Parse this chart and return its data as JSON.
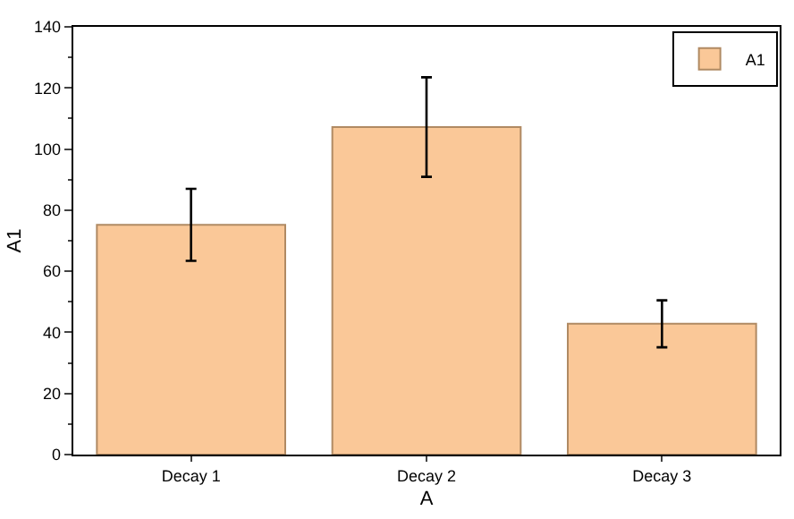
{
  "chart_data": {
    "type": "bar",
    "xlabel": "A",
    "ylabel": "A1",
    "categories": [
      "Decay 1",
      "Decay 2",
      "Decay 3"
    ],
    "series": [
      {
        "name": "A1",
        "color": "#fac898",
        "values": [
          75.2,
          107.2,
          42.8
        ],
        "errors": [
          11.8,
          16.3,
          7.7
        ]
      }
    ],
    "ylim": [
      0,
      140
    ],
    "yticks": [
      0,
      20,
      40,
      60,
      80,
      100,
      120,
      140
    ],
    "legend": "top right"
  }
}
